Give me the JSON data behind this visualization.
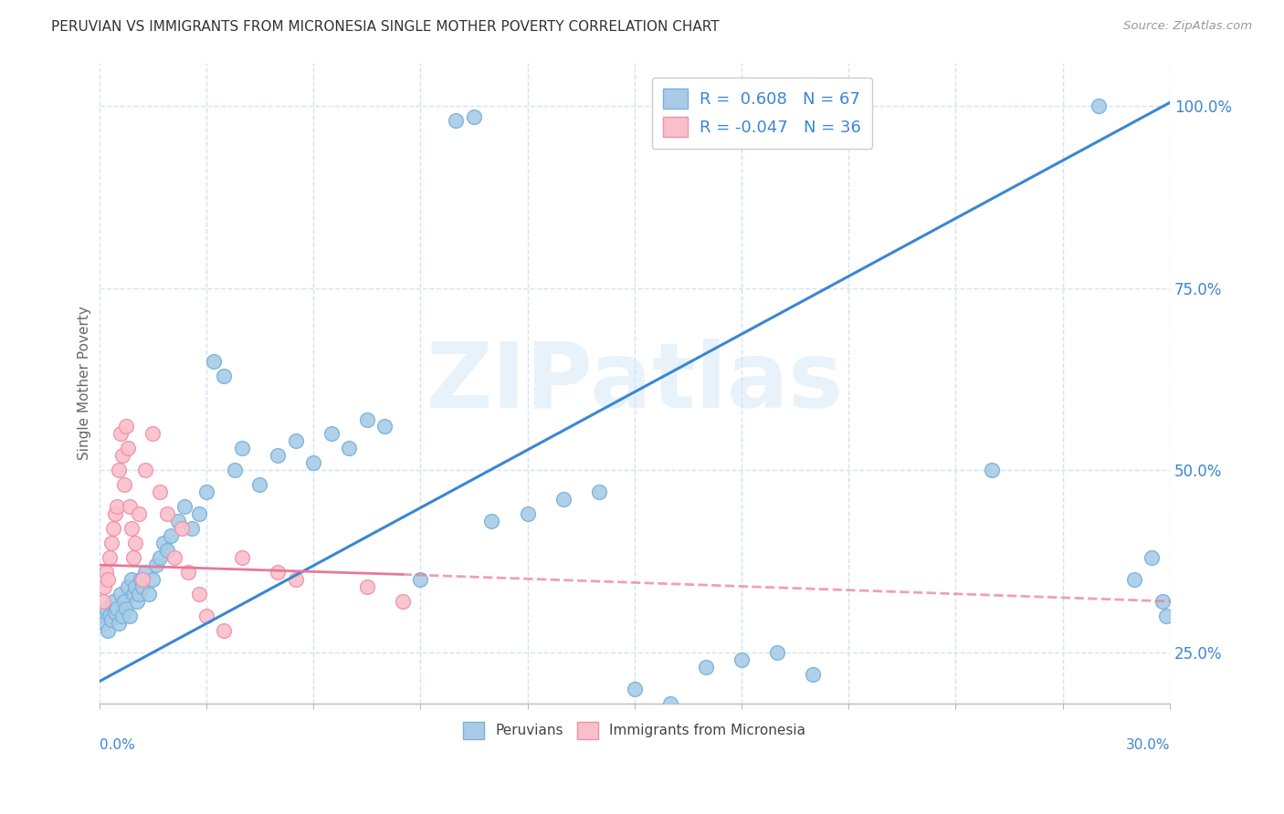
{
  "title": "PERUVIAN VS IMMIGRANTS FROM MICRONESIA SINGLE MOTHER POVERTY CORRELATION CHART",
  "source": "Source: ZipAtlas.com",
  "ylabel": "Single Mother Poverty",
  "legend_label1": "Peruvians",
  "legend_label2": "Immigrants from Micronesia",
  "r1": 0.608,
  "n1": 67,
  "r2": -0.047,
  "n2": 36,
  "color_blue": "#a8cce8",
  "color_pink": "#f9c0cb",
  "color_blue_edge": "#7ab0d8",
  "color_pink_edge": "#f090a8",
  "color_blue_line": "#3a86d4",
  "color_pink_line": "#f0a0b8",
  "watermark_text": "ZIPatlas",
  "xlim": [
    0.0,
    30.0
  ],
  "ylim": [
    18.0,
    106.0
  ],
  "blue_line_x0": 0.0,
  "blue_line_y0": 21.0,
  "blue_line_x1": 30.0,
  "blue_line_y1": 100.5,
  "pink_line_x0": 0.0,
  "pink_line_y0": 37.0,
  "pink_line_x1": 30.0,
  "pink_line_y1": 32.0,
  "pink_line_solid_x1": 8.5,
  "pink_line_solid_y1": 35.7,
  "blue_x": [
    0.1,
    0.15,
    0.2,
    0.25,
    0.3,
    0.35,
    0.4,
    0.45,
    0.5,
    0.55,
    0.6,
    0.65,
    0.7,
    0.75,
    0.8,
    0.85,
    0.9,
    0.95,
    1.0,
    1.05,
    1.1,
    1.15,
    1.2,
    1.3,
    1.4,
    1.5,
    1.6,
    1.7,
    1.8,
    1.9,
    2.0,
    2.2,
    2.4,
    2.6,
    2.8,
    3.0,
    3.2,
    3.5,
    3.8,
    4.0,
    4.5,
    5.0,
    5.5,
    6.0,
    6.5,
    7.0,
    7.5,
    8.0,
    9.0,
    10.0,
    10.5,
    11.0,
    12.0,
    13.0,
    14.0,
    15.0,
    16.0,
    17.0,
    18.0,
    19.0,
    20.0,
    25.0,
    28.0,
    29.0,
    29.5,
    29.8,
    29.9
  ],
  "blue_y": [
    30.0,
    29.0,
    31.0,
    28.0,
    30.0,
    29.5,
    32.0,
    30.5,
    31.0,
    29.0,
    33.0,
    30.0,
    32.0,
    31.0,
    34.0,
    30.0,
    35.0,
    33.0,
    34.0,
    32.0,
    33.0,
    35.0,
    34.0,
    36.0,
    33.0,
    35.0,
    37.0,
    38.0,
    40.0,
    39.0,
    41.0,
    43.0,
    45.0,
    42.0,
    44.0,
    47.0,
    65.0,
    63.0,
    50.0,
    53.0,
    48.0,
    52.0,
    54.0,
    51.0,
    55.0,
    53.0,
    57.0,
    56.0,
    35.0,
    98.0,
    98.5,
    43.0,
    44.0,
    46.0,
    47.0,
    20.0,
    18.0,
    23.0,
    24.0,
    25.0,
    22.0,
    50.0,
    100.0,
    35.0,
    38.0,
    32.0,
    30.0
  ],
  "pink_x": [
    0.1,
    0.15,
    0.2,
    0.25,
    0.3,
    0.35,
    0.4,
    0.45,
    0.5,
    0.55,
    0.6,
    0.65,
    0.7,
    0.75,
    0.8,
    0.85,
    0.9,
    0.95,
    1.0,
    1.1,
    1.2,
    1.3,
    1.5,
    1.7,
    1.9,
    2.1,
    2.3,
    2.5,
    2.8,
    3.0,
    3.5,
    4.0,
    5.0,
    5.5,
    7.5,
    8.5
  ],
  "pink_y": [
    32.0,
    34.0,
    36.0,
    35.0,
    38.0,
    40.0,
    42.0,
    44.0,
    45.0,
    50.0,
    55.0,
    52.0,
    48.0,
    56.0,
    53.0,
    45.0,
    42.0,
    38.0,
    40.0,
    44.0,
    35.0,
    50.0,
    55.0,
    47.0,
    44.0,
    38.0,
    42.0,
    36.0,
    33.0,
    30.0,
    28.0,
    38.0,
    36.0,
    35.0,
    34.0,
    32.0
  ],
  "ytick_positions": [
    25,
    50,
    75,
    100
  ],
  "ytick_labels": [
    "25.0%",
    "50.0%",
    "75.0%",
    "100.0%"
  ],
  "grid_color": "#d0e4f4",
  "grid_style": "--",
  "bg_color": "#ffffff"
}
